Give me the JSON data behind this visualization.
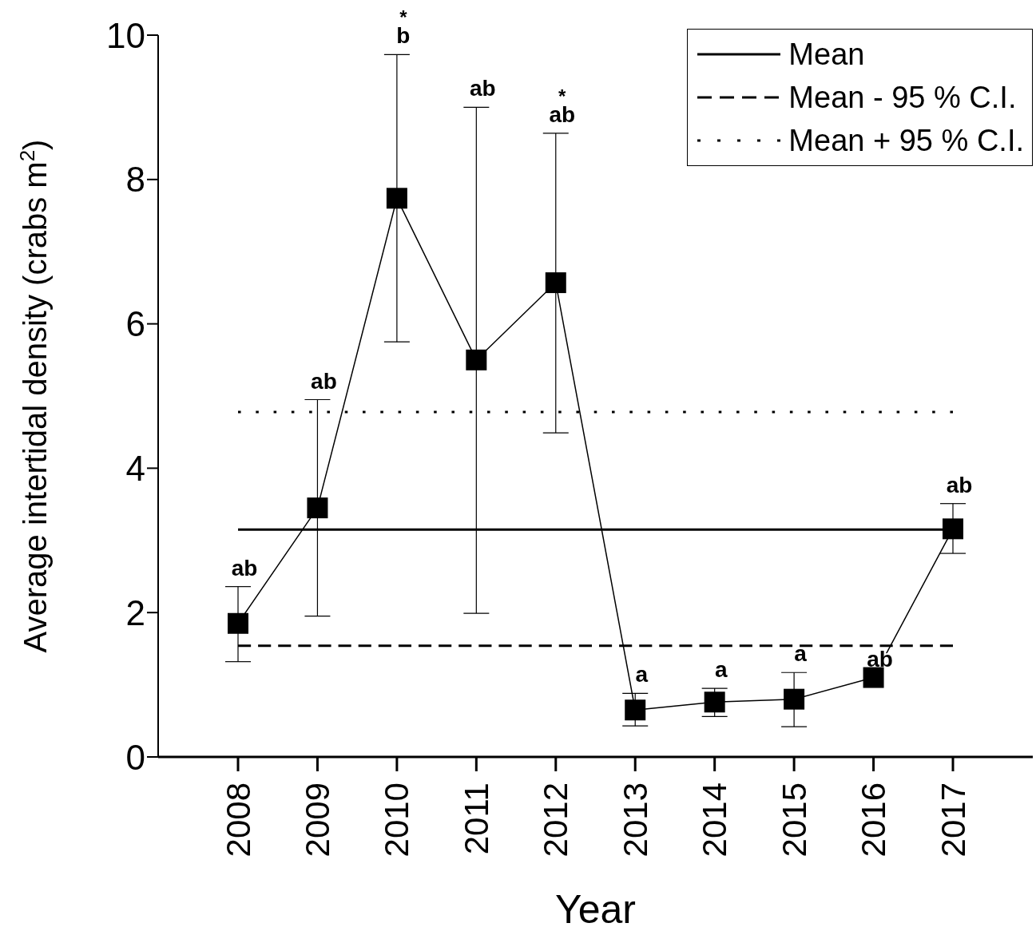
{
  "chart_data": {
    "type": "line",
    "xlabel": "Year",
    "ylabel": "Average intertidal density (crabs m$^{2}$)",
    "categories": [
      "2008",
      "2009",
      "2010",
      "2011",
      "2012",
      "2013",
      "2014",
      "2015",
      "2016",
      "2017"
    ],
    "series": [
      {
        "color": "#000000",
        "marker": "square",
        "line_style": "solid",
        "values": [
          1.85,
          3.45,
          7.74,
          5.5,
          6.57,
          0.65,
          0.76,
          0.8,
          1.1,
          3.16
        ],
        "errors": [
          [
            1.32,
            2.36
          ],
          [
            1.95,
            4.95
          ],
          [
            5.75,
            9.73
          ],
          [
            1.99,
            9.0
          ],
          [
            4.49,
            8.64
          ],
          [
            0.43,
            0.88
          ],
          [
            0.56,
            0.95
          ],
          [
            0.42,
            1.17
          ],
          null,
          [
            2.82,
            3.51
          ]
        ]
      },
      {
        "name": "Mean",
        "color": "#000000",
        "marker": "none",
        "line_style": "solid",
        "values": [
          3.15,
          3.15,
          3.15,
          3.15,
          3.15,
          3.15,
          3.15,
          3.15,
          3.15,
          3.15
        ]
      },
      {
        "name": "Mean - 95 % C.I.",
        "color": "#000000",
        "marker": "none",
        "line_style": "dashed",
        "values": [
          1.54,
          1.54,
          1.54,
          1.54,
          1.54,
          1.54,
          1.54,
          1.54,
          1.54,
          1.54
        ]
      },
      {
        "name": "Mean + 95 % C.I.",
        "color": "#000000",
        "marker": "none",
        "line_style": "dotted",
        "values": [
          4.78,
          4.78,
          4.78,
          4.78,
          4.78,
          4.78,
          4.78,
          4.78,
          4.78,
          4.78
        ]
      }
    ],
    "ylim": [
      0,
      10
    ],
    "yticks": [
      0,
      2,
      4,
      6,
      8,
      10
    ],
    "grid": false,
    "legend": "top right",
    "annotations": [
      {
        "text": "ab",
        "x": "2008",
        "y": 2.36
      },
      {
        "text": "ab",
        "x": "2009",
        "y": 4.95
      },
      {
        "text": "b",
        "x": "2010",
        "y": 9.73
      },
      {
        "text": "*",
        "x": "2010",
        "y": 9.73
      },
      {
        "text": "ab",
        "x": "2011",
        "y": 9.0
      },
      {
        "text": "ab",
        "x": "2012",
        "y": 8.64
      },
      {
        "text": "*",
        "x": "2012",
        "y": 8.64
      },
      {
        "text": "a",
        "x": "2013",
        "y": 0.88
      },
      {
        "text": "a",
        "x": "2014",
        "y": 0.95
      },
      {
        "text": "a",
        "x": "2015",
        "y": 1.17
      },
      {
        "text": "ab",
        "x": "2016",
        "y": 1.1
      },
      {
        "text": "ab",
        "x": "2017",
        "y": 3.51
      }
    ]
  }
}
